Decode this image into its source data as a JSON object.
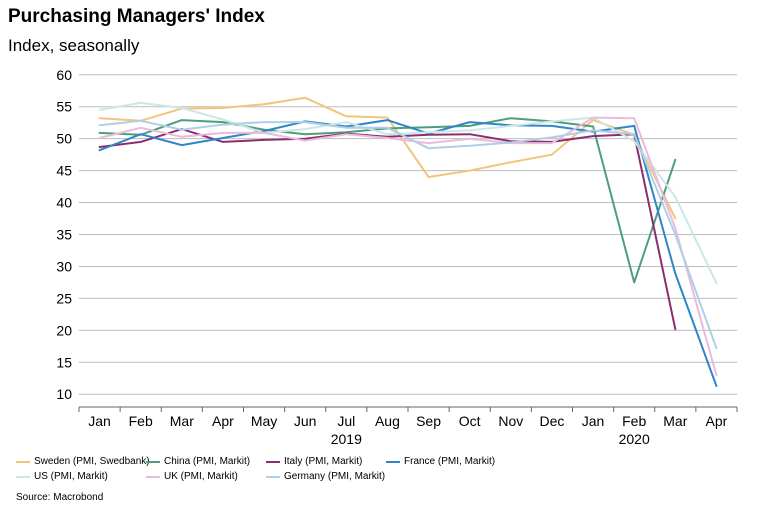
{
  "chart_data": {
    "type": "line",
    "title": "Purchasing Managers' Index",
    "ylabel": "Index, seasonally",
    "categories": [
      "Jan",
      "Feb",
      "Mar",
      "Apr",
      "May",
      "Jun",
      "Jul",
      "Aug",
      "Sep",
      "Oct",
      "Nov",
      "Dec",
      "Jan",
      "Feb",
      "Mar",
      "Apr"
    ],
    "year_labels": [
      {
        "label": "2019",
        "category_index": 6
      },
      {
        "label": "2020",
        "category_index": 13
      }
    ],
    "ylim": [
      8,
      62
    ],
    "yticks": [
      10,
      15,
      20,
      25,
      30,
      35,
      40,
      45,
      50,
      55,
      60
    ],
    "grid": true,
    "legend_position": "bottom",
    "series": [
      {
        "name": "Sweden (PMI, Swedbank)",
        "color": "#F2C57C",
        "values": [
          53.2,
          52.8,
          54.7,
          54.8,
          55.4,
          56.4,
          53.5,
          53.3,
          44.0,
          45.0,
          46.3,
          47.5,
          52.9,
          50.6,
          37.5,
          null
        ]
      },
      {
        "name": "China (PMI, Markit)",
        "color": "#4E9E7B",
        "values": [
          50.9,
          50.6,
          52.9,
          52.6,
          51.4,
          50.7,
          51.0,
          51.6,
          51.8,
          52.0,
          53.2,
          52.7,
          51.9,
          27.5,
          46.7,
          null
        ]
      },
      {
        "name": "Italy (PMI, Markit)",
        "color": "#8B2D6F",
        "values": [
          48.7,
          49.5,
          51.5,
          49.5,
          49.8,
          50.0,
          50.8,
          50.3,
          50.6,
          50.7,
          49.6,
          49.5,
          50.4,
          50.7,
          20.2,
          null
        ]
      },
      {
        "name": "France (PMI, Markit)",
        "color": "#2E86C8",
        "values": [
          48.2,
          50.7,
          49.0,
          50.1,
          51.2,
          52.7,
          51.9,
          52.9,
          50.8,
          52.6,
          52.1,
          52.0,
          51.1,
          52.0,
          28.9,
          11.3
        ]
      },
      {
        "name": "US (PMI, Markit)",
        "color": "#CDE6E6",
        "values": [
          54.5,
          55.6,
          54.8,
          53.0,
          50.9,
          51.5,
          52.6,
          50.7,
          51.0,
          51.3,
          52.0,
          52.7,
          53.3,
          49.6,
          40.9,
          27.4
        ]
      },
      {
        "name": "UK (PMI, Markit)",
        "color": "#E9BCDC",
        "values": [
          50.1,
          51.7,
          50.3,
          50.9,
          50.9,
          49.7,
          50.7,
          50.1,
          49.3,
          50.0,
          49.3,
          49.3,
          53.3,
          53.2,
          36.0,
          13.0
        ]
      },
      {
        "name": "Germany (PMI, Markit)",
        "color": "#AFCFE9",
        "values": [
          52.1,
          52.8,
          51.4,
          52.2,
          52.6,
          52.6,
          51.7,
          51.7,
          48.5,
          48.9,
          49.4,
          50.2,
          51.3,
          50.7,
          35.0,
          17.2
        ]
      }
    ],
    "source": "Source: Macrobond"
  }
}
